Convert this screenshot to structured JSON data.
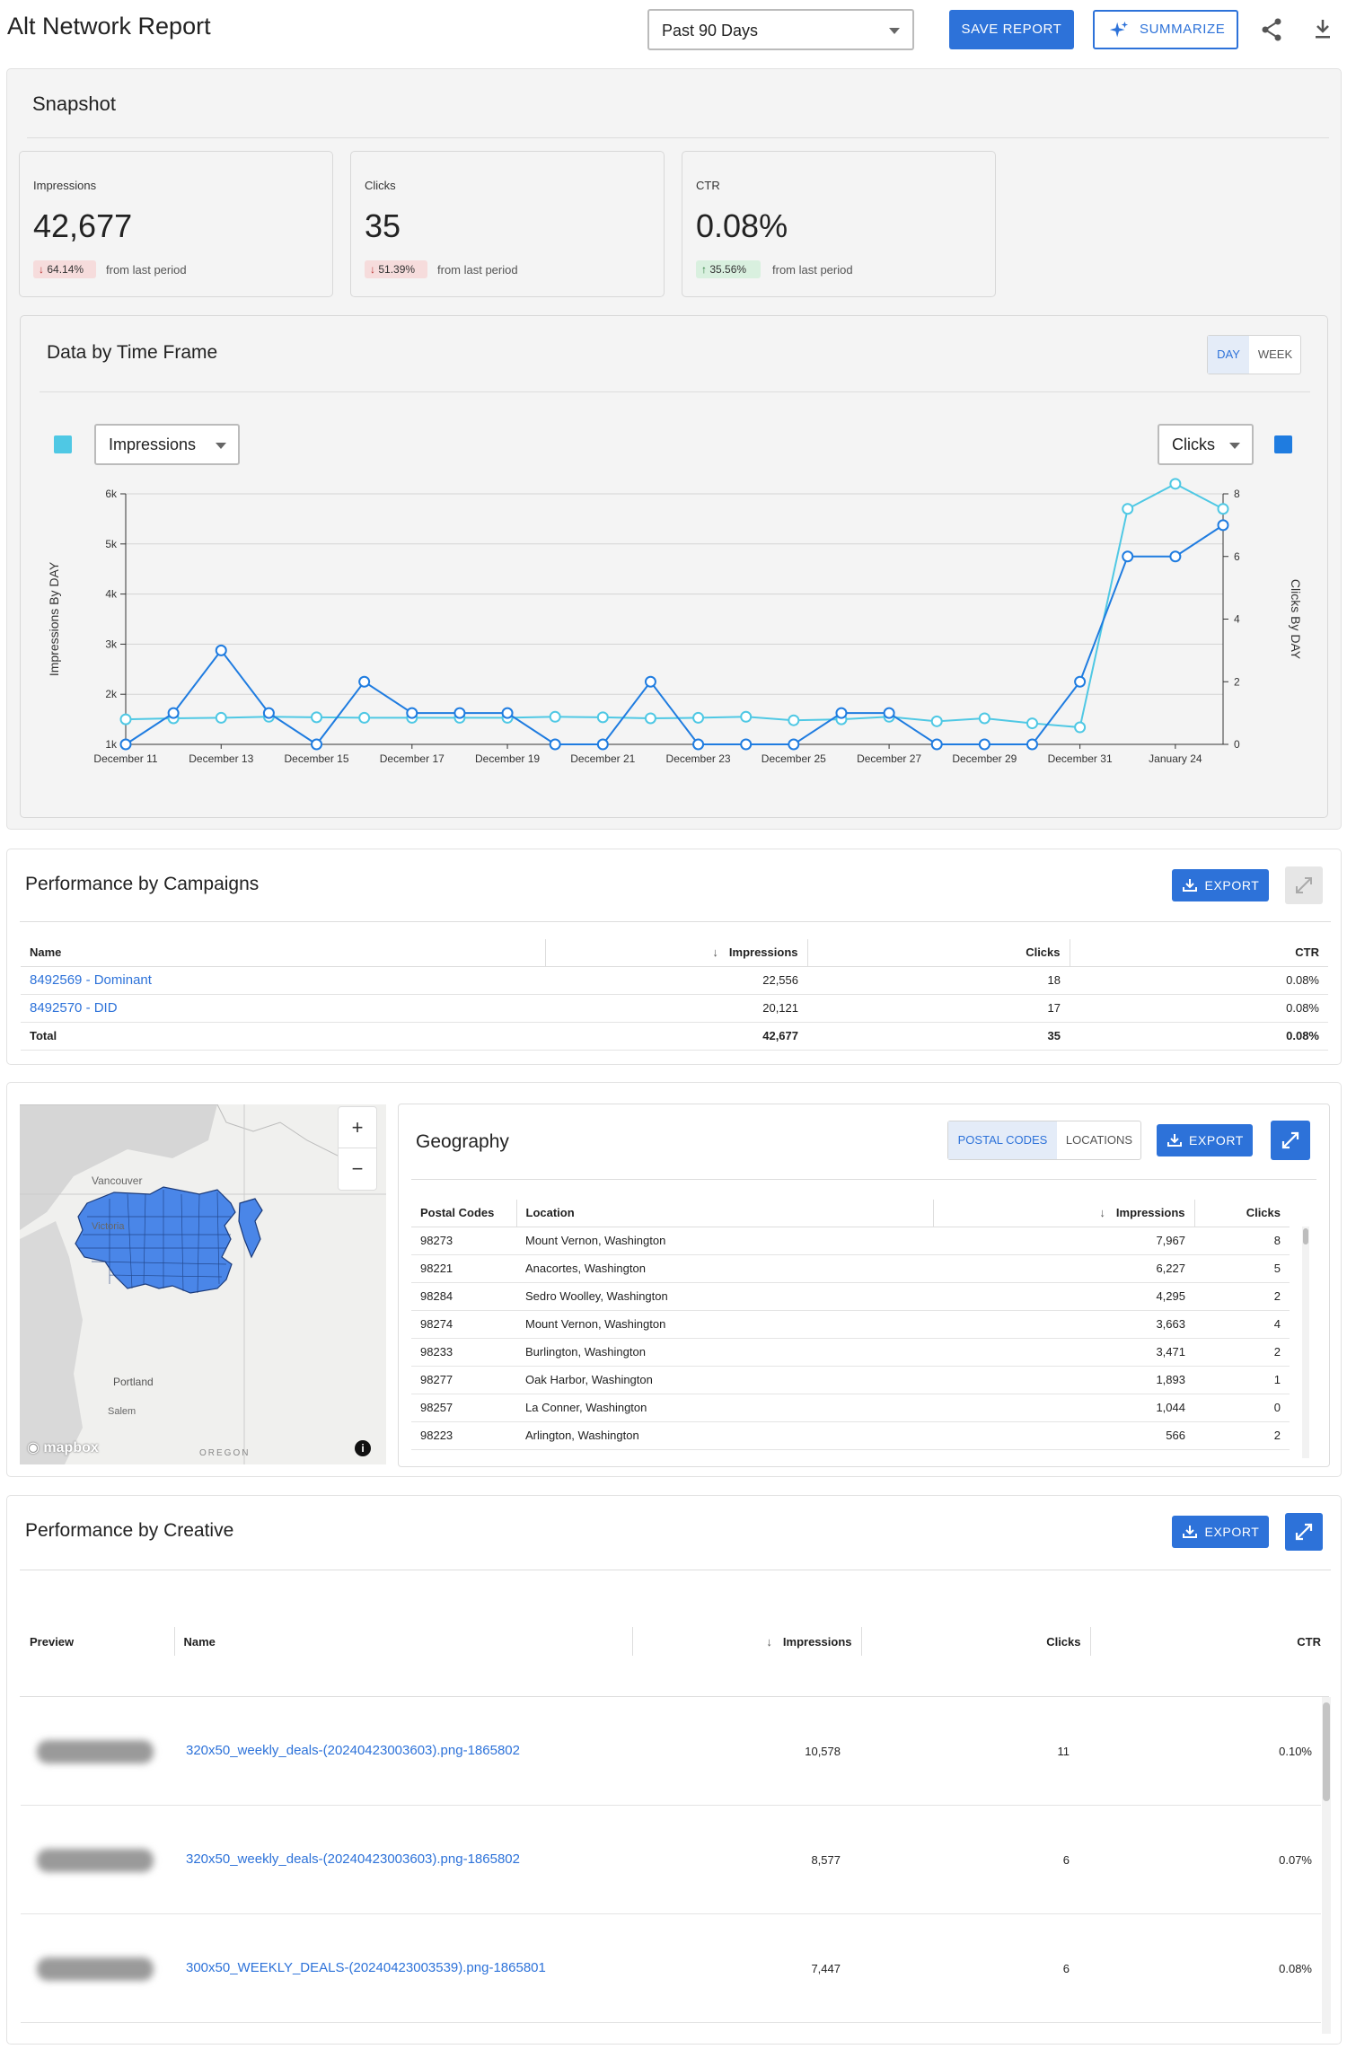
{
  "header": {
    "title": "Alt Network Report",
    "date_range": "Past 90 Days",
    "save_label": "SAVE REPORT",
    "summarize_label": "SUMMARIZE"
  },
  "snapshot": {
    "title": "Snapshot",
    "kpis": [
      {
        "label": "Impressions",
        "value": "42,677",
        "change": "64.14%",
        "direction": "down",
        "note": "from last period"
      },
      {
        "label": "Clicks",
        "value": "35",
        "change": "51.39%",
        "direction": "down",
        "note": "from last period"
      },
      {
        "label": "CTR",
        "value": "0.08%",
        "change": "35.56%",
        "direction": "up",
        "note": "from last period"
      }
    ]
  },
  "timeframe": {
    "title": "Data by Time Frame",
    "toggle": [
      "DAY",
      "WEEK"
    ],
    "left_metric": "Impressions",
    "right_metric": "Clicks",
    "left_color": "#4fc8e4",
    "right_color": "#1f7ce0"
  },
  "chart_data": {
    "type": "line",
    "x": [
      "December 11",
      "December 12",
      "December 13",
      "December 14",
      "December 15",
      "December 16",
      "December 17",
      "December 18",
      "December 19",
      "December 20",
      "December 21",
      "December 22",
      "December 23",
      "December 24",
      "December 25",
      "December 26",
      "December 27",
      "December 28",
      "December 29",
      "December 30",
      "December 31",
      "January 1",
      "January 24",
      "January 25"
    ],
    "x_ticks": [
      "December 11",
      "December 13",
      "December 15",
      "December 17",
      "December 19",
      "December 21",
      "December 23",
      "December 25",
      "December 27",
      "December 29",
      "December 31",
      "January 24"
    ],
    "series": [
      {
        "axis": "left",
        "color": "#4fc8e4",
        "values": [
          1500,
          1520,
          1530,
          1550,
          1540,
          1530,
          1530,
          1530,
          1530,
          1550,
          1540,
          1520,
          1530,
          1550,
          1480,
          1500,
          1550,
          1460,
          1520,
          1420,
          1340,
          5700,
          6200,
          5700
        ]
      },
      {
        "axis": "right",
        "color": "#1f7ce0",
        "values": [
          0,
          1,
          3,
          1,
          0,
          2,
          1,
          1,
          1,
          0,
          0,
          2,
          0,
          0,
          0,
          1,
          1,
          0,
          0,
          0,
          2,
          6,
          6,
          7
        ]
      }
    ],
    "ylabel": "Impressions By DAY",
    "y2label": "Clicks By DAY",
    "y_ticks": [
      "1k",
      "2k",
      "3k",
      "4k",
      "5k",
      "6k"
    ],
    "y2_ticks": [
      "0",
      "2",
      "4",
      "6",
      "8"
    ],
    "ylim": [
      1000,
      6000
    ],
    "y2lim": [
      0,
      8
    ],
    "grid": true
  },
  "campaigns": {
    "title": "Performance by Campaigns",
    "export_label": "EXPORT",
    "columns": [
      "Name",
      "Impressions",
      "Clicks",
      "CTR"
    ],
    "rows": [
      {
        "name": "8492569 - Dominant",
        "impressions": "22,556",
        "clicks": "18",
        "ctr": "0.08%"
      },
      {
        "name": "8492570 - DID",
        "impressions": "20,121",
        "clicks": "17",
        "ctr": "0.08%"
      }
    ],
    "total": {
      "name": "Total",
      "impressions": "42,677",
      "clicks": "35",
      "ctr": "0.08%"
    }
  },
  "map": {
    "labels": [
      "Vancouver",
      "Victoria",
      "Portland",
      "Salem",
      "OREGON"
    ],
    "brand": "mapbox",
    "zoom_in": "+",
    "zoom_out": "−",
    "fill_color": "#4a86e8"
  },
  "geography": {
    "title": "Geography",
    "toggle": [
      "POSTAL CODES",
      "LOCATIONS"
    ],
    "export_label": "EXPORT",
    "columns": [
      "Postal Codes",
      "Location",
      "Impressions",
      "Clicks"
    ],
    "rows": [
      {
        "code": "98273",
        "location": "Mount Vernon, Washington",
        "impressions": "7,967",
        "clicks": "8"
      },
      {
        "code": "98221",
        "location": "Anacortes, Washington",
        "impressions": "6,227",
        "clicks": "5"
      },
      {
        "code": "98284",
        "location": "Sedro Woolley, Washington",
        "impressions": "4,295",
        "clicks": "2"
      },
      {
        "code": "98274",
        "location": "Mount Vernon, Washington",
        "impressions": "3,663",
        "clicks": "4"
      },
      {
        "code": "98233",
        "location": "Burlington, Washington",
        "impressions": "3,471",
        "clicks": "2"
      },
      {
        "code": "98277",
        "location": "Oak Harbor, Washington",
        "impressions": "1,893",
        "clicks": "1"
      },
      {
        "code": "98257",
        "location": "La Conner, Washington",
        "impressions": "1,044",
        "clicks": "0"
      },
      {
        "code": "98223",
        "location": "Arlington, Washington",
        "impressions": "566",
        "clicks": "2"
      }
    ]
  },
  "creative": {
    "title": "Performance by Creative",
    "export_label": "EXPORT",
    "columns": [
      "Preview",
      "Name",
      "Impressions",
      "Clicks",
      "CTR"
    ],
    "rows": [
      {
        "name": "320x50_weekly_deals-(20240423003603).png-1865802",
        "impressions": "10,578",
        "clicks": "11",
        "ctr": "0.10%"
      },
      {
        "name": "320x50_weekly_deals-(20240423003603).png-1865802",
        "impressions": "8,577",
        "clicks": "6",
        "ctr": "0.07%"
      },
      {
        "name": "300x50_WEEKLY_DEALS-(20240423003539).png-1865801",
        "impressions": "7,447",
        "clicks": "6",
        "ctr": "0.08%"
      }
    ]
  }
}
